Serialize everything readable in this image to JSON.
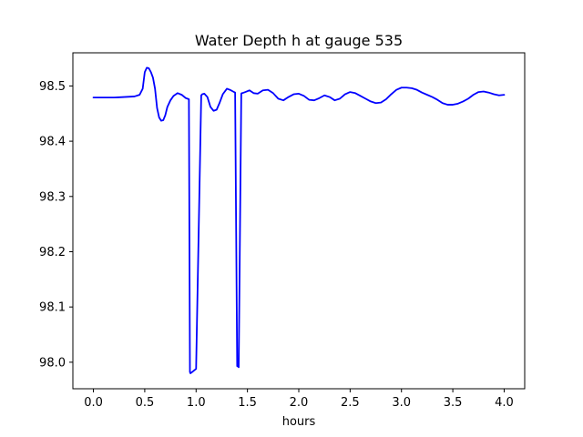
{
  "chart_data": {
    "type": "line",
    "title": "Water Depth h at gauge 535",
    "xlabel": "hours",
    "ylabel": "",
    "xlim": [
      -0.2,
      4.2
    ],
    "ylim": [
      97.952,
      98.56
    ],
    "xticks": [
      0.0,
      0.5,
      1.0,
      1.5,
      2.0,
      2.5,
      3.0,
      3.5,
      4.0
    ],
    "xtick_labels": [
      "0.0",
      "0.5",
      "1.0",
      "1.5",
      "2.0",
      "2.5",
      "3.0",
      "3.5",
      "4.0"
    ],
    "yticks": [
      98.0,
      98.1,
      98.2,
      98.3,
      98.4,
      98.5
    ],
    "ytick_labels": [
      "98.0",
      "98.1",
      "98.2",
      "98.3",
      "98.4",
      "98.5"
    ],
    "grid": false,
    "series": [
      {
        "color": "#0000ff",
        "x": [
          0.0,
          0.1,
          0.2,
          0.3,
          0.4,
          0.45,
          0.48,
          0.5,
          0.52,
          0.54,
          0.56,
          0.58,
          0.6,
          0.62,
          0.64,
          0.66,
          0.68,
          0.7,
          0.72,
          0.75,
          0.78,
          0.82,
          0.86,
          0.9,
          0.93,
          0.94,
          0.945,
          0.96,
          0.98,
          1.0,
          1.05,
          1.06,
          1.08,
          1.11,
          1.14,
          1.17,
          1.2,
          1.23,
          1.26,
          1.3,
          1.33,
          1.36,
          1.38,
          1.4,
          1.41,
          1.415,
          1.44,
          1.445,
          1.45,
          1.48,
          1.52,
          1.56,
          1.6,
          1.65,
          1.7,
          1.75,
          1.8,
          1.85,
          1.9,
          1.95,
          2.0,
          2.05,
          2.1,
          2.15,
          2.2,
          2.25,
          2.3,
          2.35,
          2.4,
          2.45,
          2.5,
          2.55,
          2.6,
          2.65,
          2.7,
          2.75,
          2.8,
          2.85,
          2.9,
          2.95,
          3.0,
          3.05,
          3.1,
          3.15,
          3.2,
          3.25,
          3.3,
          3.35,
          3.4,
          3.45,
          3.5,
          3.55,
          3.6,
          3.65,
          3.7,
          3.75,
          3.8,
          3.85,
          3.9,
          3.95,
          4.0
        ],
        "y": [
          98.479,
          98.479,
          98.479,
          98.48,
          98.481,
          98.484,
          98.495,
          98.525,
          98.533,
          98.532,
          98.525,
          98.515,
          98.495,
          98.46,
          98.443,
          98.437,
          98.438,
          98.447,
          98.462,
          98.474,
          98.482,
          98.487,
          98.484,
          98.478,
          98.476,
          97.982,
          97.98,
          97.982,
          97.985,
          97.988,
          98.483,
          98.485,
          98.486,
          98.48,
          98.462,
          98.455,
          98.457,
          98.47,
          98.485,
          98.495,
          98.493,
          98.49,
          98.488,
          97.993,
          97.992,
          97.991,
          98.486,
          98.487,
          98.487,
          98.489,
          98.492,
          98.487,
          98.486,
          98.492,
          98.493,
          98.487,
          98.477,
          98.474,
          98.48,
          98.485,
          98.486,
          98.482,
          98.475,
          98.474,
          98.478,
          98.483,
          98.48,
          98.474,
          98.477,
          98.485,
          98.489,
          98.487,
          98.482,
          98.477,
          98.472,
          98.469,
          98.47,
          98.476,
          98.485,
          98.493,
          98.497,
          98.497,
          98.496,
          98.493,
          98.488,
          98.484,
          98.48,
          98.475,
          98.469,
          98.466,
          98.466,
          98.468,
          98.472,
          98.477,
          98.484,
          98.489,
          98.49,
          98.488,
          98.485,
          98.483,
          98.484
        ]
      }
    ]
  }
}
